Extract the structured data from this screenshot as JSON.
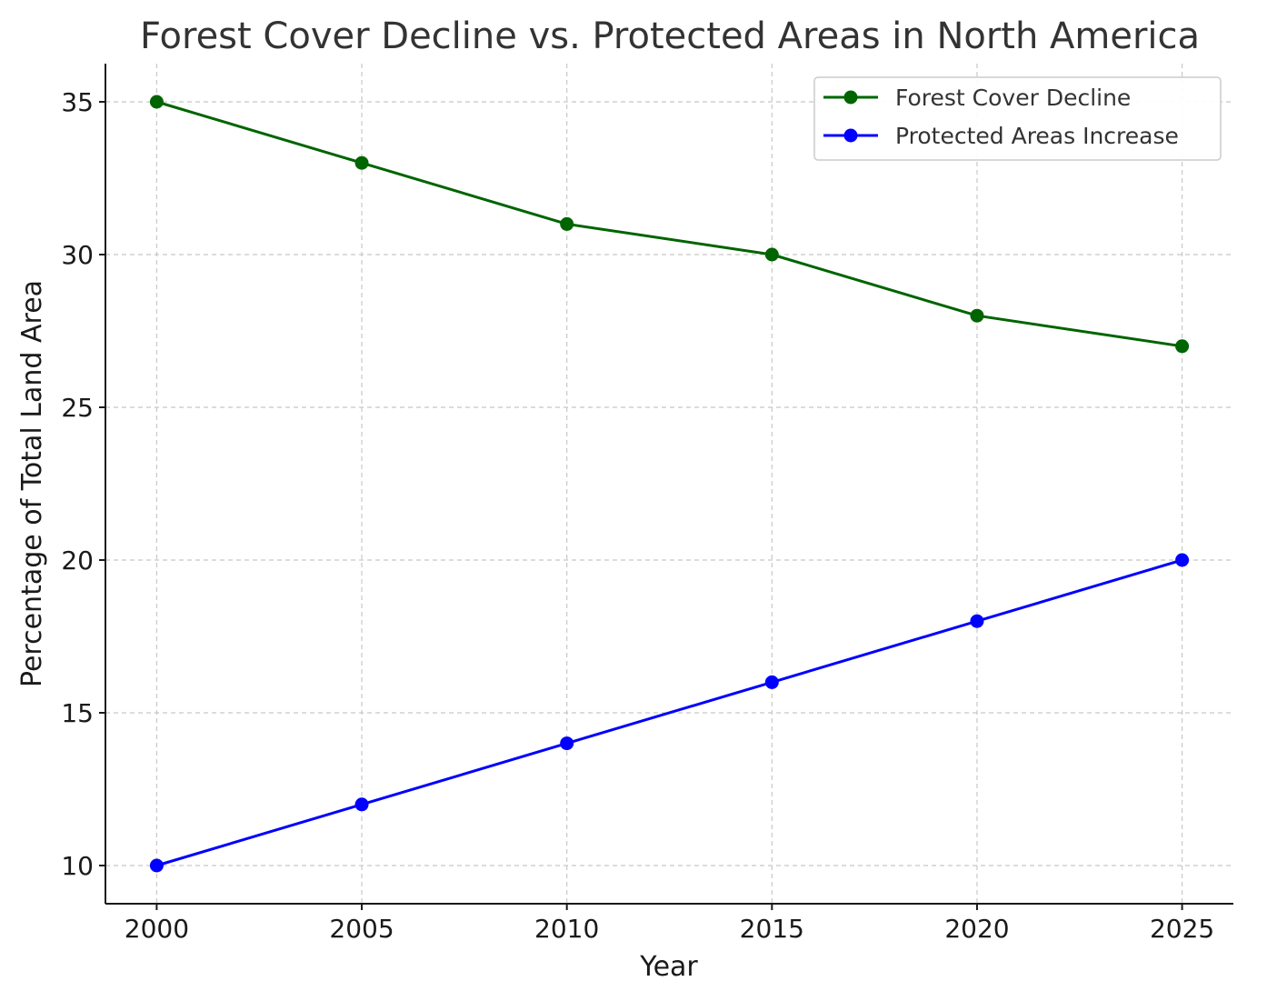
{
  "chart_data": {
    "type": "line",
    "title": "Forest Cover Decline vs. Protected Areas in North America",
    "xlabel": "Year",
    "ylabel": "Percentage of Total Land Area",
    "x": [
      2000,
      2005,
      2010,
      2015,
      2020,
      2025
    ],
    "xticks": [
      2000,
      2005,
      2010,
      2015,
      2020,
      2025
    ],
    "xlim": [
      1998.75,
      2026.25
    ],
    "yticks": [
      10,
      15,
      20,
      25,
      30,
      35
    ],
    "ylim": [
      8.75,
      36.25
    ],
    "grid": true,
    "legend_position": "top-right",
    "series": [
      {
        "name": "Forest Cover Decline",
        "color": "#006400",
        "values": [
          35,
          33,
          31,
          30,
          28,
          27
        ]
      },
      {
        "name": "Protected Areas Increase",
        "color": "#0000ff",
        "values": [
          10,
          12,
          14,
          16,
          18,
          20
        ]
      }
    ]
  }
}
